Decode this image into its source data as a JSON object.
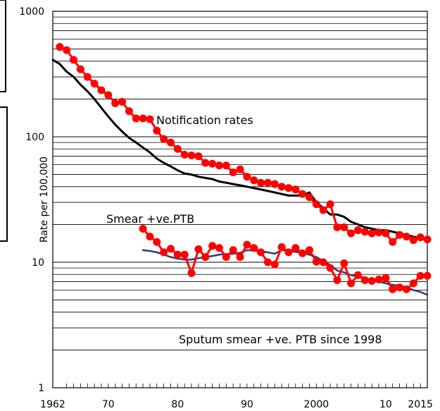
{
  "chart_data": {
    "type": "line",
    "title": "",
    "xlabel": "",
    "ylabel": "Rate per 100,000",
    "yscale": "log",
    "ylim": [
      1,
      1000
    ],
    "xlim": [
      1962,
      2016
    ],
    "grid": "horizontal",
    "x_tick_labels": [
      "1962",
      "70",
      "80",
      "90",
      "2000",
      "10",
      "2015"
    ],
    "y_tick_labels": [
      "1",
      "10",
      "100",
      "1000"
    ],
    "annotations": {
      "notification": "Notification rates",
      "smear": "Smear +ve.PTB",
      "sputum": "Sputum smear +ve. PTB since 1998"
    },
    "colors": {
      "points": "#ff0000",
      "trend_notification": "#000000",
      "trend_smear": "#3c3c78"
    },
    "series": [
      {
        "style": "red line with circle markers",
        "x": [
          1963,
          1964,
          1965,
          1966,
          1967,
          1968,
          1969,
          1970,
          1971,
          1972,
          1973,
          1974,
          1975,
          1976,
          1977,
          1978,
          1979,
          1980,
          1981,
          1982,
          1983,
          1984,
          1985,
          1986,
          1987,
          1988,
          1989,
          1990,
          1991,
          1992,
          1993,
          1994,
          1995,
          1996,
          1997,
          1998,
          1999,
          2000,
          2001,
          2002,
          2003,
          2004,
          2005,
          2006,
          2007,
          2008,
          2009,
          2010,
          2011,
          2012,
          2013,
          2014,
          2015,
          2016
        ],
        "y": [
          520,
          490,
          410,
          345,
          300,
          265,
          235,
          215,
          185,
          190,
          160,
          140,
          140,
          138,
          112,
          96,
          90,
          80,
          72,
          71,
          70,
          62,
          61,
          59,
          59,
          52,
          55,
          48,
          45,
          43,
          43,
          42,
          40,
          39,
          38,
          35,
          33,
          29,
          26,
          29,
          19,
          19,
          17,
          18,
          17.5,
          17,
          17.3,
          17,
          14.5,
          16.5,
          16,
          15,
          15.8,
          15.2
        ]
      },
      {
        "style": "black line",
        "x": [
          1962,
          1963,
          1964,
          1965,
          1966,
          1967,
          1968,
          1969,
          1970,
          1971,
          1972,
          1973,
          1974,
          1975,
          1976,
          1977,
          1978,
          1979,
          1980,
          1981,
          1982,
          1983,
          1984,
          1985,
          1986,
          1987,
          1988,
          1989,
          1990,
          1991,
          1992,
          1993,
          1994,
          1995,
          1996,
          1997,
          1998,
          1999,
          2000,
          2001,
          2002,
          2003,
          2004,
          2005,
          2006,
          2007,
          2008,
          2009,
          2010,
          2011,
          2012,
          2013,
          2014,
          2015,
          2016
        ],
        "y": [
          410,
          380,
          330,
          300,
          260,
          230,
          200,
          170,
          145,
          125,
          110,
          98,
          90,
          82,
          75,
          67,
          62,
          58,
          54,
          51,
          50,
          48,
          47,
          46,
          44,
          43,
          42,
          41,
          40,
          39,
          38,
          37,
          36,
          35,
          34,
          34,
          34,
          36,
          30,
          27,
          24,
          24,
          23,
          21,
          20,
          19,
          18.5,
          18,
          18,
          17.5,
          17,
          16.5,
          16,
          15.5,
          15
        ]
      },
      {
        "style": "red line with circle markers",
        "x": [
          1975,
          1976,
          1977,
          1978,
          1979,
          1980,
          1981,
          1982,
          1983,
          1984,
          1985,
          1986,
          1987,
          1988,
          1989,
          1990,
          1991,
          1992,
          1993,
          1994,
          1995,
          1996,
          1997,
          1998,
          1999,
          2000,
          2001,
          2002,
          2003,
          2004,
          2005,
          2006,
          2007,
          2008,
          2009,
          2010,
          2011,
          2012,
          2013,
          2014,
          2015,
          2016
        ],
        "y": [
          18.5,
          16,
          14.5,
          12,
          12.8,
          11.5,
          11.5,
          8.2,
          12.7,
          11,
          13.5,
          13,
          11,
          12.5,
          11,
          13.8,
          13,
          12,
          10,
          9.6,
          13.2,
          12,
          13,
          11.8,
          12.5,
          10.1,
          10,
          9,
          7.2,
          9.8,
          6.8,
          7.9,
          7.2,
          7.1,
          7.3,
          7.5,
          6.1,
          6.3,
          6.1,
          6.8,
          7.8,
          7.8
        ]
      },
      {
        "style": "dark blue line",
        "x": [
          1975,
          1976,
          1977,
          1978,
          1979,
          1980,
          1981,
          1982,
          1983,
          1984,
          1985,
          1986,
          1987,
          1988,
          1989,
          1990,
          1991,
          1992,
          1993,
          1994,
          1995,
          1996,
          1997,
          1998,
          1999,
          2000,
          2001,
          2002,
          2003,
          2004,
          2005,
          2006,
          2007,
          2008,
          2009,
          2010,
          2011,
          2012,
          2013,
          2014,
          2015,
          2016
        ],
        "y": [
          12.5,
          12.3,
          12,
          11.5,
          11,
          10.7,
          10.5,
          10.5,
          10.8,
          11,
          11.2,
          11.5,
          11.6,
          11.7,
          11.9,
          12.5,
          12.4,
          12.2,
          12,
          11.7,
          12.5,
          12.3,
          12.1,
          11.9,
          11.5,
          11,
          10.2,
          9.5,
          8.6,
          8.3,
          7.9,
          7.7,
          7.5,
          7.2,
          7,
          6.8,
          6.6,
          6.5,
          6.3,
          6,
          5.8,
          5.5
        ]
      }
    ]
  }
}
